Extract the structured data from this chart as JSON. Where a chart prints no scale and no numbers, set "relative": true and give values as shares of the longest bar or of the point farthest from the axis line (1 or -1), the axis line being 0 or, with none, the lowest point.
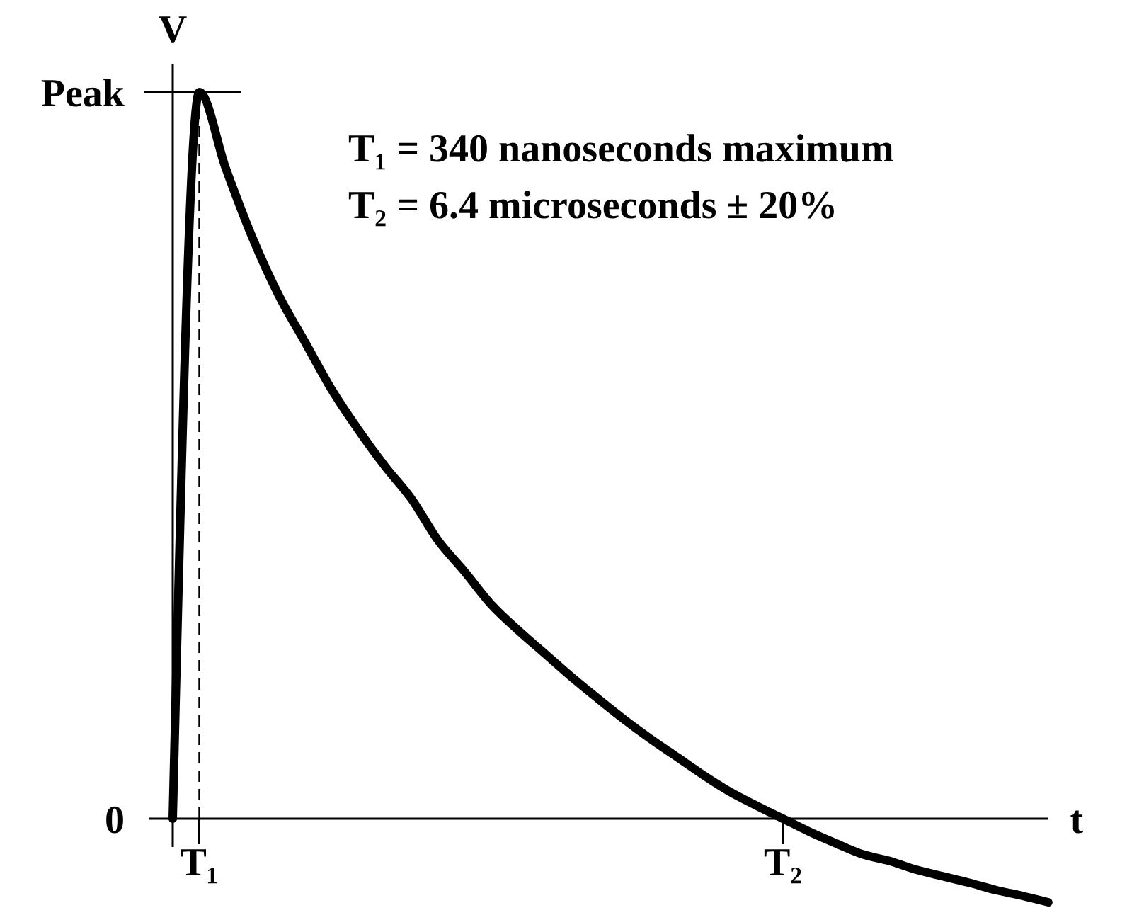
{
  "chart_data": {
    "type": "line",
    "xlabel": "t",
    "ylabel": "V",
    "relative": true,
    "annotations": [
      "T₁ = 340 nanoseconds maximum",
      "T₂ = 6.4 microseconds ± 20%",
      "Peak",
      "0"
    ],
    "categories": [
      null,
      "T₁",
      null,
      null,
      null,
      null,
      null,
      null,
      null,
      null,
      null,
      null,
      null,
      null,
      null,
      null,
      null,
      null,
      null,
      null,
      null,
      null,
      null,
      "T₂",
      null,
      null,
      null,
      null,
      null,
      null,
      null,
      null,
      null,
      null
    ],
    "ref_lines": [
      {
        "axis": "x",
        "value": "T₁",
        "line_style": "dashed",
        "color": "#000000"
      }
    ],
    "series": [
      {
        "color": "#000000",
        "values": [
          0,
          1,
          0.895,
          0.8,
          0.72,
          0.655,
          0.59,
          0.535,
          0.485,
          0.44,
          0.383,
          0.34,
          0.295,
          0.26,
          0.228,
          0.196,
          0.166,
          0.137,
          0.11,
          0.085,
          0.06,
          0.037,
          0.018,
          0,
          -0.018,
          -0.034,
          -0.049,
          -0.058,
          -0.07,
          -0.079,
          -0.088,
          -0.098,
          -0.106,
          -0.115
        ]
      }
    ]
  }
}
